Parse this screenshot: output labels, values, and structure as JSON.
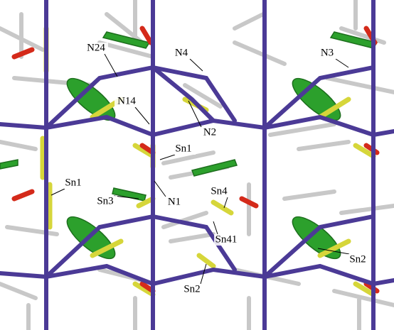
{
  "labels": [
    "N24",
    "N4",
    "N3",
    "N14",
    "N2",
    "Sn1",
    "Sn1",
    "Sn3",
    "N1",
    "Sn4",
    "Sn41",
    "Sn2",
    "Sn2"
  ]
}
